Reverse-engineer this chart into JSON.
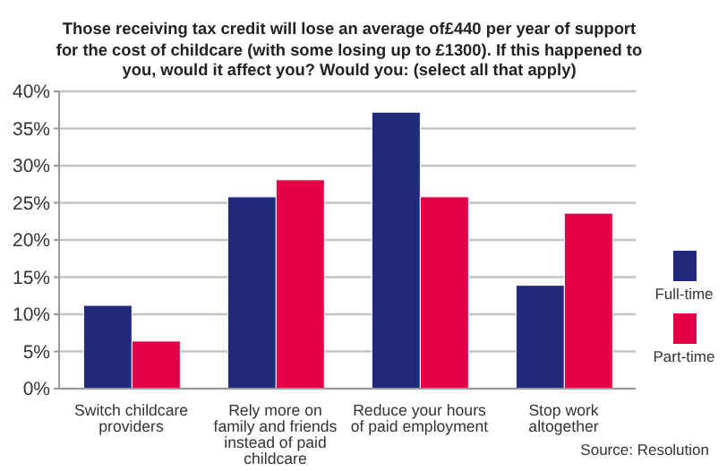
{
  "chart_data": {
    "type": "bar",
    "title": "Those receiving tax credit will lose an average of£440 per year of support for the cost of childcare (with some losing up to £1300). If this happened to you, would it affect you? Would you: (select all that apply)",
    "categories": [
      "Switch childcare providers",
      "Rely more on family and friends instead of paid childcare",
      "Reduce your hours of paid employment",
      "Stop work altogether"
    ],
    "series": [
      {
        "name": "Full-time",
        "color": "#222a7e",
        "values": [
          11.2,
          25.8,
          37.2,
          13.9
        ]
      },
      {
        "name": "Part-time",
        "color": "#e30046",
        "values": [
          6.4,
          28.1,
          25.8,
          23.6
        ]
      }
    ],
    "ylim": [
      0,
      40
    ],
    "yticks": [
      {
        "value": 0,
        "label": "0%"
      },
      {
        "value": 5,
        "label": "5%"
      },
      {
        "value": 10,
        "label": "10%"
      },
      {
        "value": 15,
        "label": "15%"
      },
      {
        "value": 20,
        "label": "20%"
      },
      {
        "value": 25,
        "label": "25%"
      },
      {
        "value": 30,
        "label": "30%"
      },
      {
        "value": 35,
        "label": "35%"
      },
      {
        "value": 40,
        "label": "40%"
      }
    ],
    "grid": "y",
    "legend": "right",
    "annotations": [
      "Source: Resolution"
    ]
  }
}
